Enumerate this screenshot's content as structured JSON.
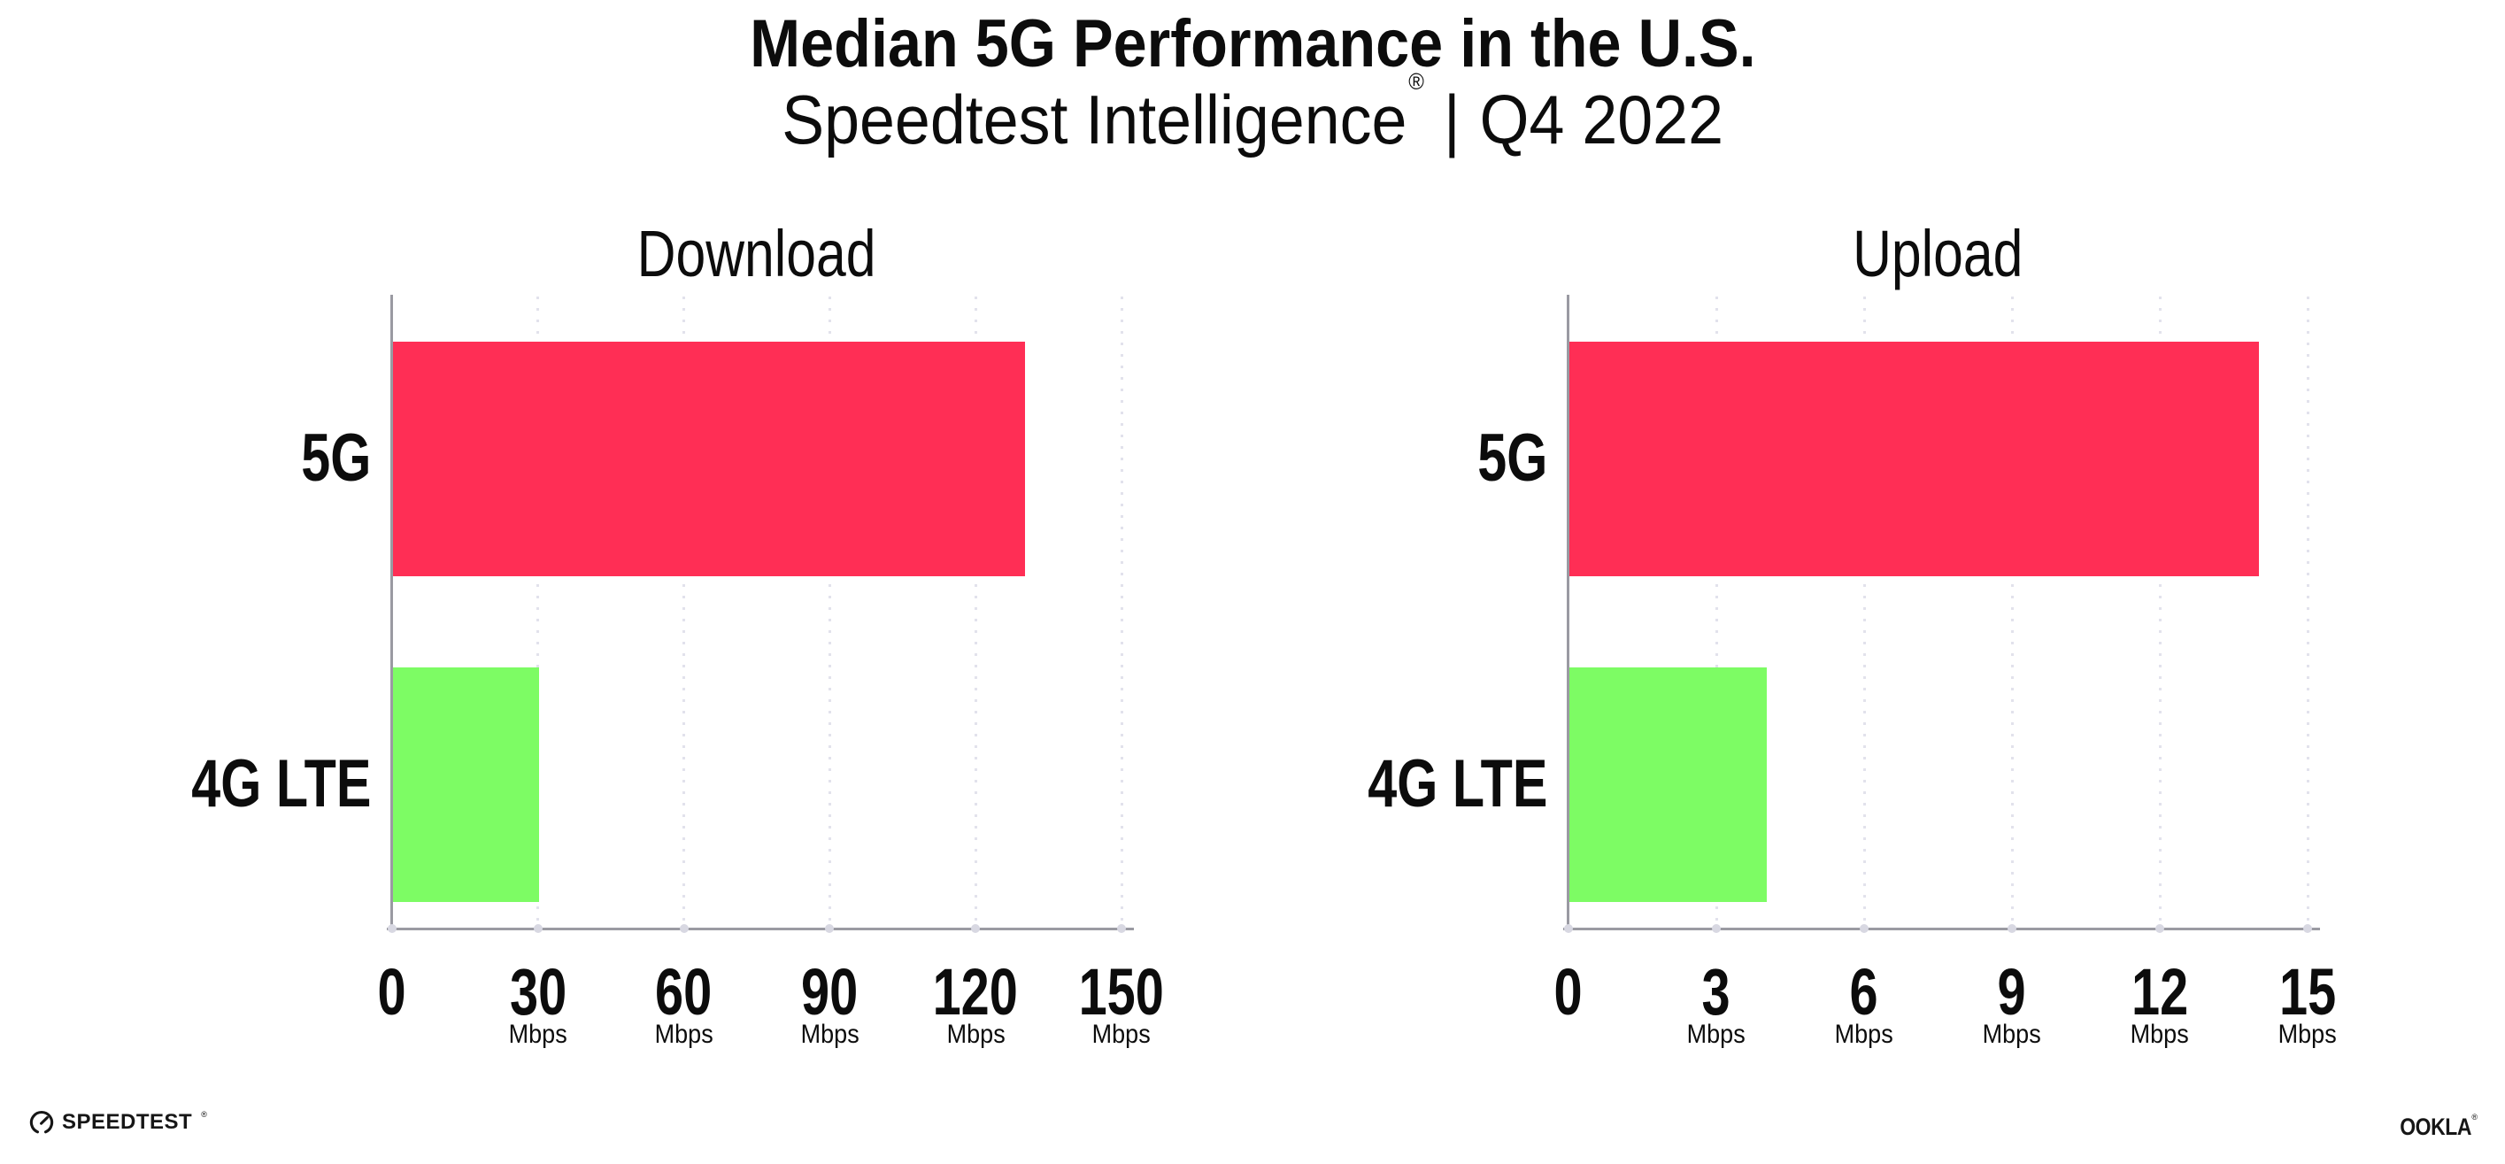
{
  "header": {
    "title": "Median 5G Performance in the U.S.",
    "subtitle_brand": "Speedtest Intelligence",
    "subtitle_reg": "®",
    "subtitle_sep": "|",
    "subtitle_period": "Q4 2022"
  },
  "colors": {
    "bar_5g": "#ff2e55",
    "bar_4g": "#7dfc64",
    "axis": "#9a9aa2",
    "gridline": "#e2e2ec",
    "tick_dot": "#d8d8e2",
    "text": "#0c0c0c",
    "background": "#ffffff"
  },
  "chart_data": [
    {
      "type": "bar",
      "orientation": "horizontal",
      "title": "Download",
      "categories": [
        "5G",
        "4G LTE"
      ],
      "values": [
        130,
        30
      ],
      "unit": "Mbps",
      "xlim": [
        0,
        150
      ],
      "xticks": [
        0,
        30,
        60,
        90,
        120,
        150
      ],
      "bar_colors": [
        "#ff2e55",
        "#7dfc64"
      ],
      "grid": "vertical-dotted",
      "legend": "none"
    },
    {
      "type": "bar",
      "orientation": "horizontal",
      "title": "Upload",
      "categories": [
        "5G",
        "4G LTE"
      ],
      "values": [
        14,
        4
      ],
      "unit": "Mbps",
      "xlim": [
        0,
        15
      ],
      "xticks": [
        0,
        3,
        6,
        9,
        12,
        15
      ],
      "bar_colors": [
        "#ff2e55",
        "#7dfc64"
      ],
      "grid": "vertical-dotted",
      "legend": "none"
    }
  ],
  "footer": {
    "speedtest_label": "SPEEDTEST",
    "speedtest_reg": "®",
    "speedtest_icon": "speedtest-gauge-icon",
    "ookla_label": "OOKLA",
    "ookla_reg": "®"
  }
}
